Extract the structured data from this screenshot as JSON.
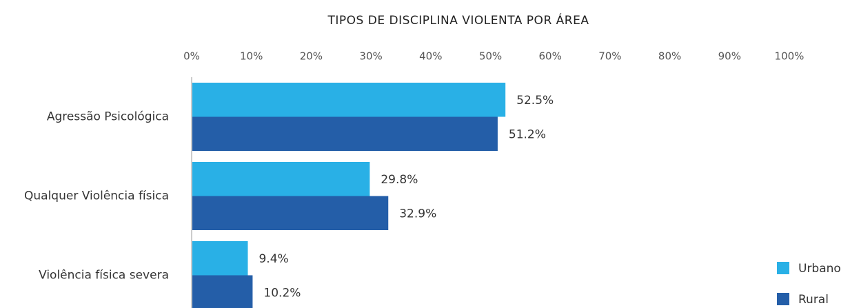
{
  "chart_data": {
    "type": "hbar",
    "title": "TIPOS DE DISCIPLINA VIOLENTA POR ÁREA",
    "categories": [
      "Agressão Psicológica",
      "Qualquer Violência física",
      "Violência física severa"
    ],
    "series": [
      {
        "name": "Urbano",
        "color": "#29b0e6",
        "values": [
          52.5,
          29.8,
          9.4
        ],
        "value_labels": [
          "52.5%",
          "29.8%",
          "9.4%"
        ]
      },
      {
        "name": "Rural",
        "color": "#245ea8",
        "values": [
          51.2,
          32.9,
          10.2
        ],
        "value_labels": [
          "51.2%",
          "32.9%",
          "10.2%"
        ]
      }
    ],
    "xlim": [
      0,
      100
    ],
    "xticks": [
      {
        "value": 0,
        "label": "0%"
      },
      {
        "value": 10,
        "label": "10%"
      },
      {
        "value": 20,
        "label": "20%"
      },
      {
        "value": 30,
        "label": "30%"
      },
      {
        "value": 40,
        "label": "40%"
      },
      {
        "value": 50,
        "label": "50%"
      },
      {
        "value": 60,
        "label": "60%"
      },
      {
        "value": 70,
        "label": "70%"
      },
      {
        "value": 80,
        "label": "80%"
      },
      {
        "value": 90,
        "label": "90%"
      },
      {
        "value": 100,
        "label": "100%"
      }
    ],
    "legend": "bottom-right"
  }
}
